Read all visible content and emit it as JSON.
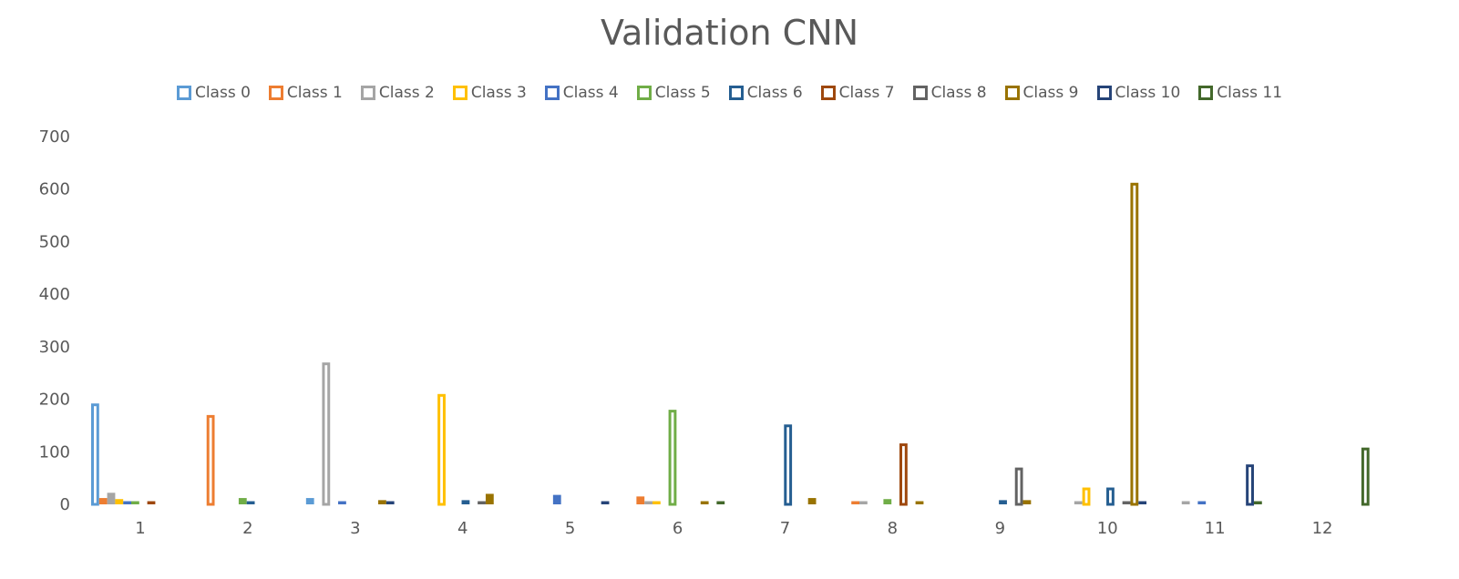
{
  "chart_data": {
    "type": "bar",
    "title": "Validation CNN",
    "xlabel": "",
    "ylabel": "",
    "ylim": [
      0,
      700
    ],
    "yticks": [
      "0",
      "100",
      "200",
      "300",
      "400",
      "500",
      "600",
      "700"
    ],
    "categories": [
      "1",
      "2",
      "3",
      "4",
      "5",
      "6",
      "7",
      "8",
      "9",
      "10",
      "11",
      "12"
    ],
    "legend_position": "top",
    "grid": false,
    "series": [
      {
        "name": "Class 0",
        "color": "#5B9BD5",
        "values": [
          192,
          0,
          12,
          0,
          0,
          0,
          0,
          0,
          0,
          0,
          0,
          0
        ]
      },
      {
        "name": "Class 1",
        "color": "#ED7D31",
        "values": [
          12,
          170,
          0,
          0,
          0,
          15,
          0,
          6,
          0,
          0,
          0,
          0
        ]
      },
      {
        "name": "Class 2",
        "color": "#A5A5A5",
        "values": [
          22,
          0,
          270,
          0,
          0,
          6,
          0,
          6,
          0,
          6,
          6,
          0
        ]
      },
      {
        "name": "Class 3",
        "color": "#FFC000",
        "values": [
          10,
          0,
          0,
          210,
          0,
          6,
          0,
          0,
          0,
          32,
          0,
          0
        ]
      },
      {
        "name": "Class 4",
        "color": "#4472C4",
        "values": [
          6,
          0,
          6,
          0,
          18,
          0,
          0,
          0,
          0,
          0,
          6,
          0
        ]
      },
      {
        "name": "Class 5",
        "color": "#70AD47",
        "values": [
          6,
          12,
          0,
          0,
          0,
          180,
          0,
          10,
          0,
          0,
          0,
          0
        ]
      },
      {
        "name": "Class 6",
        "color": "#255E91",
        "values": [
          0,
          6,
          0,
          8,
          0,
          0,
          152,
          0,
          8,
          32,
          0,
          0
        ]
      },
      {
        "name": "Class 7",
        "color": "#9E480E",
        "values": [
          6,
          0,
          0,
          0,
          0,
          0,
          0,
          116,
          0,
          0,
          0,
          0
        ]
      },
      {
        "name": "Class 8",
        "color": "#636363",
        "values": [
          0,
          0,
          0,
          6,
          0,
          0,
          0,
          0,
          70,
          6,
          0,
          0
        ]
      },
      {
        "name": "Class 9",
        "color": "#997300",
        "values": [
          0,
          0,
          8,
          20,
          0,
          6,
          12,
          6,
          8,
          612,
          0,
          0
        ]
      },
      {
        "name": "Class 10",
        "color": "#264478",
        "values": [
          0,
          0,
          6,
          0,
          6,
          0,
          0,
          0,
          0,
          6,
          76,
          0
        ]
      },
      {
        "name": "Class 11",
        "color": "#43682B",
        "values": [
          0,
          0,
          0,
          0,
          0,
          6,
          0,
          0,
          0,
          0,
          6,
          108
        ]
      }
    ]
  }
}
